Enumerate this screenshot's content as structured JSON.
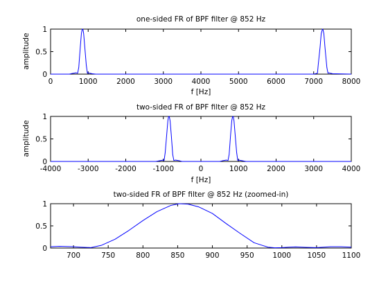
{
  "figure": {
    "background": "#ffffff"
  },
  "chart_data": [
    {
      "type": "line",
      "title": "one-sided FR of BPF filter @ 852 Hz",
      "xlabel": "f [Hz]",
      "ylabel": "amplitude",
      "xlim": [
        0,
        8000
      ],
      "ylim": [
        0,
        1
      ],
      "xticks": [
        0,
        1000,
        2000,
        3000,
        4000,
        5000,
        6000,
        7000,
        8000
      ],
      "yticks": [
        0,
        0.5,
        1
      ],
      "grid": false,
      "series": [
        {
          "color": "#0000ff",
          "x": [
            0,
            500,
            600,
            680,
            720,
            750,
            790,
            820,
            840,
            852,
            865,
            880,
            910,
            950,
            980,
            1000,
            1050,
            1100,
            1200,
            7000,
            7100,
            7120,
            7170,
            7200,
            7234,
            7250,
            7270,
            7300,
            7350,
            7380,
            7400,
            7500,
            8000
          ],
          "y": [
            0,
            0,
            0.02,
            0.03,
            0.02,
            0.15,
            0.6,
            0.9,
            0.99,
            1.0,
            0.98,
            0.9,
            0.6,
            0.2,
            0.02,
            0.03,
            0.02,
            0.01,
            0,
            0,
            0.02,
            0.2,
            0.6,
            0.9,
            1.0,
            0.98,
            0.9,
            0.6,
            0.15,
            0.02,
            0.03,
            0.01,
            0
          ]
        }
      ]
    },
    {
      "type": "line",
      "title": "two-sided FR of BPF filter @ 852 Hz",
      "xlabel": "f [Hz]",
      "ylabel": "amplitude",
      "xlim": [
        -4000,
        4000
      ],
      "ylim": [
        0,
        1
      ],
      "xticks": [
        -4000,
        -3000,
        -2000,
        -1000,
        0,
        1000,
        2000,
        3000,
        4000
      ],
      "yticks": [
        0,
        0.5,
        1
      ],
      "grid": false,
      "series": [
        {
          "color": "#0000ff",
          "x": [
            -4000,
            -1200,
            -1000,
            -980,
            -950,
            -910,
            -880,
            -865,
            -852,
            -840,
            -820,
            -790,
            -750,
            -720,
            -680,
            -600,
            -500,
            500,
            600,
            680,
            720,
            750,
            790,
            820,
            840,
            852,
            865,
            880,
            910,
            950,
            980,
            1000,
            1200,
            4000
          ],
          "y": [
            0,
            0,
            0.03,
            0.02,
            0.2,
            0.6,
            0.9,
            0.98,
            1.0,
            0.99,
            0.9,
            0.6,
            0.15,
            0.02,
            0.03,
            0.02,
            0,
            0,
            0.02,
            0.03,
            0.02,
            0.15,
            0.6,
            0.9,
            0.99,
            1.0,
            0.98,
            0.9,
            0.6,
            0.2,
            0.02,
            0.03,
            0,
            0
          ]
        }
      ]
    },
    {
      "type": "line",
      "title": "two-sided FR of BPF filter @ 852 Hz (zoomed-in)",
      "xlabel": "",
      "ylabel": "",
      "xlim": [
        667,
        1100
      ],
      "ylim": [
        0,
        1
      ],
      "xticks": [
        700,
        750,
        800,
        850,
        900,
        950,
        1000,
        1050,
        1100
      ],
      "yticks": [
        0,
        0.5,
        1
      ],
      "grid": false,
      "series": [
        {
          "color": "#0000ff",
          "x": [
            667,
            680,
            700,
            710,
            725,
            740,
            760,
            780,
            800,
            820,
            840,
            852,
            865,
            880,
            900,
            920,
            940,
            960,
            980,
            990,
            1000,
            1010,
            1020,
            1035,
            1050,
            1070,
            1085,
            1100
          ],
          "y": [
            0.03,
            0.04,
            0.03,
            0.02,
            0.01,
            0.06,
            0.2,
            0.4,
            0.62,
            0.82,
            0.96,
            1.0,
            0.99,
            0.93,
            0.78,
            0.55,
            0.33,
            0.12,
            0.02,
            0.005,
            0.01,
            0.02,
            0.025,
            0.015,
            0.01,
            0.03,
            0.03,
            0.02
          ]
        }
      ]
    }
  ]
}
